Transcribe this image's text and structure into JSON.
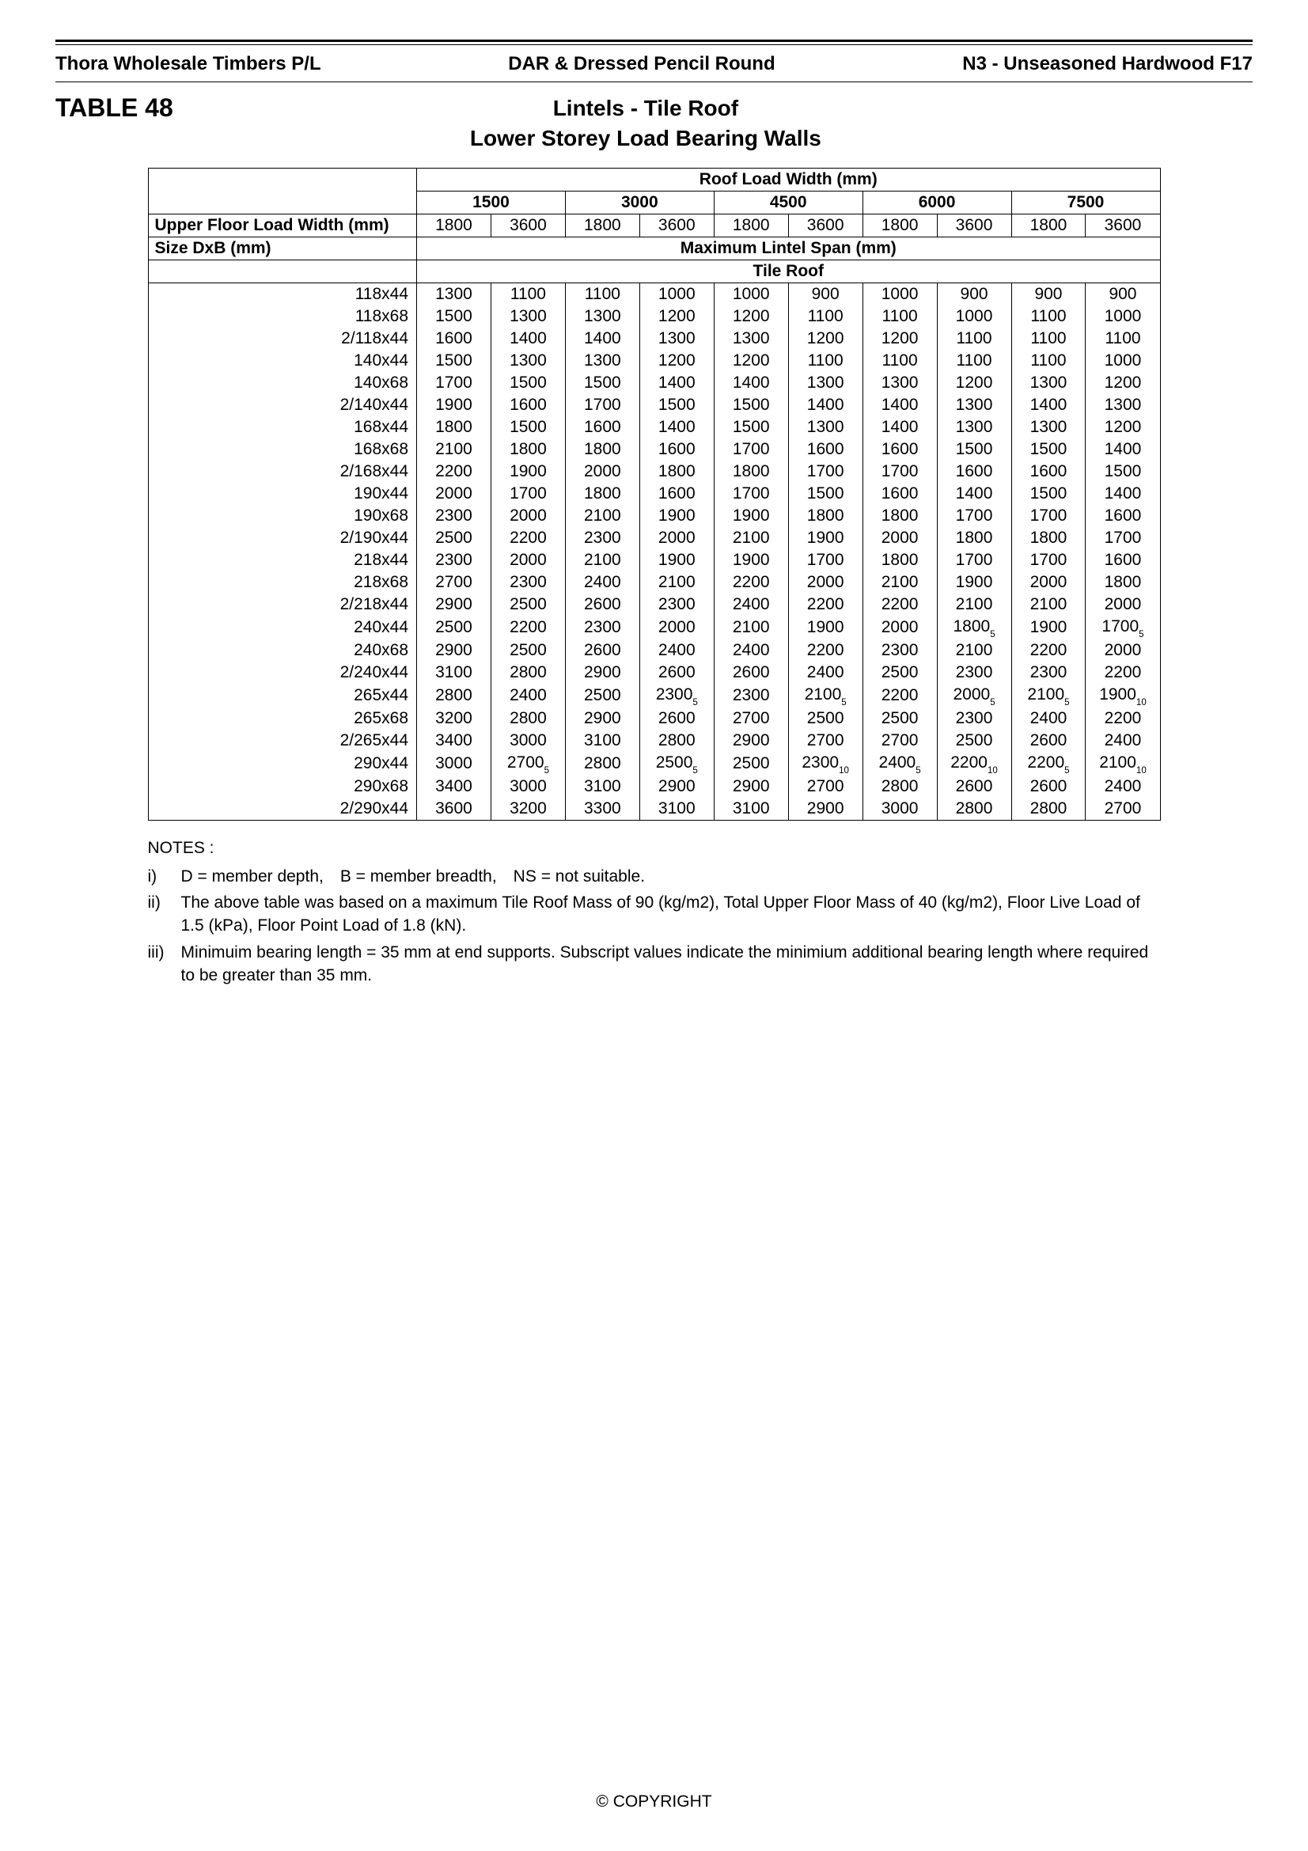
{
  "header": {
    "left": "Thora Wholesale Timbers P/L",
    "center": "DAR & Dressed Pencil Round",
    "right": "N3 - Unseasoned Hardwood F17"
  },
  "table_number": "TABLE 48",
  "title_line1": "Lintels - Tile Roof",
  "title_line2": "Lower Storey Load Bearing Walls",
  "col_headers": {
    "roof_load_width": "Roof Load Width (mm)",
    "upper_floor_load_width": "Upper Floor Load Width (mm)",
    "size": "Size DxB (mm)",
    "max_lintel_span": "Maximum Lintel Span (mm)",
    "tile_roof": "Tile Roof",
    "rlw_values": [
      "1500",
      "3000",
      "4500",
      "6000",
      "7500"
    ],
    "uflw_values": [
      "1800",
      "3600",
      "1800",
      "3600",
      "1800",
      "3600",
      "1800",
      "3600",
      "1800",
      "3600"
    ]
  },
  "rows": [
    {
      "size": "118x44",
      "v": [
        "1300",
        "1100",
        "1100",
        "1000",
        "1000",
        "900",
        "1000",
        "900",
        "900",
        "900"
      ]
    },
    {
      "size": "118x68",
      "v": [
        "1500",
        "1300",
        "1300",
        "1200",
        "1200",
        "1100",
        "1100",
        "1000",
        "1100",
        "1000"
      ]
    },
    {
      "size": "2/118x44",
      "v": [
        "1600",
        "1400",
        "1400",
        "1300",
        "1300",
        "1200",
        "1200",
        "1100",
        "1100",
        "1100"
      ]
    },
    {
      "size": "140x44",
      "v": [
        "1500",
        "1300",
        "1300",
        "1200",
        "1200",
        "1100",
        "1100",
        "1100",
        "1100",
        "1000"
      ]
    },
    {
      "size": "140x68",
      "v": [
        "1700",
        "1500",
        "1500",
        "1400",
        "1400",
        "1300",
        "1300",
        "1200",
        "1300",
        "1200"
      ]
    },
    {
      "size": "2/140x44",
      "v": [
        "1900",
        "1600",
        "1700",
        "1500",
        "1500",
        "1400",
        "1400",
        "1300",
        "1400",
        "1300"
      ]
    },
    {
      "size": "168x44",
      "v": [
        "1800",
        "1500",
        "1600",
        "1400",
        "1500",
        "1300",
        "1400",
        "1300",
        "1300",
        "1200"
      ]
    },
    {
      "size": "168x68",
      "v": [
        "2100",
        "1800",
        "1800",
        "1600",
        "1700",
        "1600",
        "1600",
        "1500",
        "1500",
        "1400"
      ]
    },
    {
      "size": "2/168x44",
      "v": [
        "2200",
        "1900",
        "2000",
        "1800",
        "1800",
        "1700",
        "1700",
        "1600",
        "1600",
        "1500"
      ]
    },
    {
      "size": "190x44",
      "v": [
        "2000",
        "1700",
        "1800",
        "1600",
        "1700",
        "1500",
        "1600",
        "1400",
        "1500",
        "1400"
      ]
    },
    {
      "size": "190x68",
      "v": [
        "2300",
        "2000",
        "2100",
        "1900",
        "1900",
        "1800",
        "1800",
        "1700",
        "1700",
        "1600"
      ]
    },
    {
      "size": "2/190x44",
      "v": [
        "2500",
        "2200",
        "2300",
        "2000",
        "2100",
        "1900",
        "2000",
        "1800",
        "1800",
        "1700"
      ]
    },
    {
      "size": "218x44",
      "v": [
        "2300",
        "2000",
        "2100",
        "1900",
        "1900",
        "1700",
        "1800",
        "1700",
        "1700",
        "1600"
      ]
    },
    {
      "size": "218x68",
      "v": [
        "2700",
        "2300",
        "2400",
        "2100",
        "2200",
        "2000",
        "2100",
        "1900",
        "2000",
        "1800"
      ]
    },
    {
      "size": "2/218x44",
      "v": [
        "2900",
        "2500",
        "2600",
        "2300",
        "2400",
        "2200",
        "2200",
        "2100",
        "2100",
        "2000"
      ]
    },
    {
      "size": "240x44",
      "v": [
        "2500",
        "2200",
        "2300",
        "2000",
        "2100",
        "1900",
        "2000",
        {
          "t": "1800",
          "s": "5"
        },
        "1900",
        {
          "t": "1700",
          "s": "5"
        }
      ]
    },
    {
      "size": "240x68",
      "v": [
        "2900",
        "2500",
        "2600",
        "2400",
        "2400",
        "2200",
        "2300",
        "2100",
        "2200",
        "2000"
      ]
    },
    {
      "size": "2/240x44",
      "v": [
        "3100",
        "2800",
        "2900",
        "2600",
        "2600",
        "2400",
        "2500",
        "2300",
        "2300",
        "2200"
      ]
    },
    {
      "size": "265x44",
      "v": [
        "2800",
        "2400",
        "2500",
        {
          "t": "2300",
          "s": "5"
        },
        "2300",
        {
          "t": "2100",
          "s": "5"
        },
        "2200",
        {
          "t": "2000",
          "s": "5"
        },
        {
          "t": "2100",
          "s": "5"
        },
        {
          "t": "1900",
          "s": "10"
        }
      ]
    },
    {
      "size": "265x68",
      "v": [
        "3200",
        "2800",
        "2900",
        "2600",
        "2700",
        "2500",
        "2500",
        "2300",
        "2400",
        "2200"
      ]
    },
    {
      "size": "2/265x44",
      "v": [
        "3400",
        "3000",
        "3100",
        "2800",
        "2900",
        "2700",
        "2700",
        "2500",
        "2600",
        "2400"
      ]
    },
    {
      "size": "290x44",
      "v": [
        "3000",
        {
          "t": "2700",
          "s": "5"
        },
        "2800",
        {
          "t": "2500",
          "s": "5"
        },
        "2500",
        {
          "t": "2300",
          "s": "10"
        },
        {
          "t": "2400",
          "s": "5"
        },
        {
          "t": "2200",
          "s": "10"
        },
        {
          "t": "2200",
          "s": "5"
        },
        {
          "t": "2100",
          "s": "10"
        }
      ]
    },
    {
      "size": "290x68",
      "v": [
        "3400",
        "3000",
        "3100",
        "2900",
        "2900",
        "2700",
        "2800",
        "2600",
        "2600",
        "2400"
      ]
    },
    {
      "size": "2/290x44",
      "v": [
        "3600",
        "3200",
        "3300",
        "3100",
        "3100",
        "2900",
        "3000",
        "2800",
        "2800",
        "2700"
      ]
    }
  ],
  "notes": {
    "heading": "NOTES :",
    "items": [
      {
        "num": "i)",
        "text": "D = member depth, B = member breadth, NS = not suitable."
      },
      {
        "num": "ii)",
        "text": "The above table was based on a maximum Tile Roof Mass of 90 (kg/m2), Total Upper Floor Mass of 40 (kg/m2), Floor Live Load of 1.5 (kPa), Floor Point Load of 1.8 (kN)."
      },
      {
        "num": "iii)",
        "text": "Minimuim bearing length = 35 mm at end supports. Subscript values indicate the minimium additional bearing length where required to be greater than 35 mm."
      }
    ]
  },
  "footer": "© COPYRIGHT"
}
